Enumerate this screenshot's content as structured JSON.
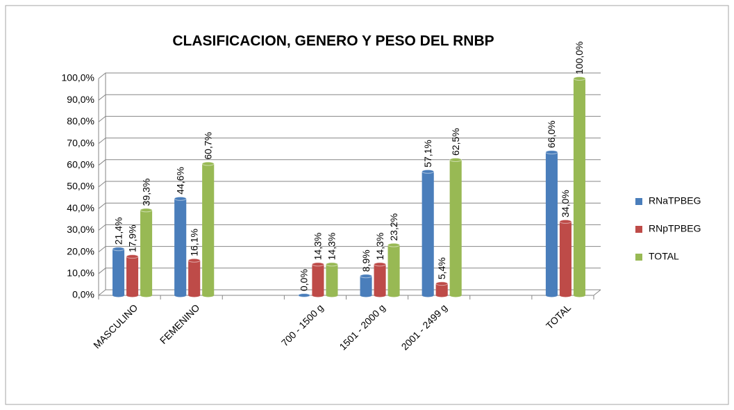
{
  "chart_data": {
    "type": "bar",
    "title": "CLASIFICACION, GENERO Y PESO DEL RNBP",
    "categories": [
      "MASCULINO",
      "FEMENINO",
      null,
      "700 - 1500 g",
      "1501 - 2000 g",
      "2001 - 2499 g",
      null,
      "TOTAL"
    ],
    "series": [
      {
        "name": "RNaTPBEG",
        "color": "#4a7ebb",
        "values": [
          21.4,
          44.6,
          null,
          0.0,
          8.9,
          57.1,
          null,
          66.0
        ],
        "value_labels": [
          "21,4%",
          "44,6%",
          null,
          "0,0%",
          "8,9%",
          "57,1%",
          null,
          "66,0%"
        ]
      },
      {
        "name": "RNpTPBEG",
        "color": "#be4b48",
        "values": [
          17.9,
          16.1,
          null,
          14.3,
          14.3,
          5.4,
          null,
          34.0
        ],
        "value_labels": [
          "17,9%",
          "16,1%",
          null,
          "14,3%",
          "14,3%",
          "5,4%",
          null,
          "34,0%"
        ]
      },
      {
        "name": "TOTAL",
        "color": "#98b954",
        "values": [
          39.3,
          60.7,
          null,
          14.3,
          23.2,
          62.5,
          null,
          100.0
        ],
        "value_labels": [
          "39,3%",
          "60,7%",
          null,
          "14,3%",
          "23,2%",
          "62,5%",
          null,
          "100,0%"
        ]
      }
    ],
    "ylim": [
      0,
      100
    ],
    "yticks": [
      {
        "value": 0,
        "label": "0,0%"
      },
      {
        "value": 10,
        "label": "10,0%"
      },
      {
        "value": 20,
        "label": "20,0%"
      },
      {
        "value": 30,
        "label": "30,0%"
      },
      {
        "value": 40,
        "label": "40,0%"
      },
      {
        "value": 50,
        "label": "50,0%"
      },
      {
        "value": 60,
        "label": "60,0%"
      },
      {
        "value": 70,
        "label": "70,0%"
      },
      {
        "value": 80,
        "label": "80,0%"
      },
      {
        "value": 90,
        "label": "90,0%"
      },
      {
        "value": 100,
        "label": "100,0%"
      }
    ],
    "grid": true,
    "legend": "right"
  }
}
